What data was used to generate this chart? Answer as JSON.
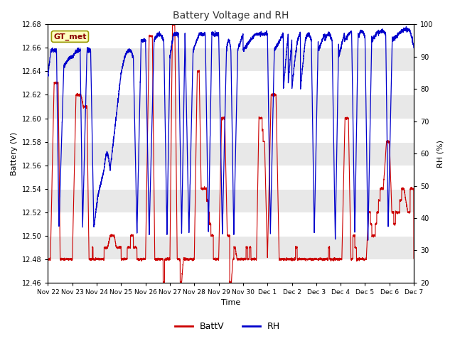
{
  "title": "Battery Voltage and RH",
  "xlabel": "Time",
  "ylabel_left": "Battery (V)",
  "ylabel_right": "RH (%)",
  "annotation": "GT_met",
  "ylim_left": [
    12.46,
    12.68
  ],
  "ylim_right": [
    20,
    100
  ],
  "yticks_left": [
    12.46,
    12.48,
    12.5,
    12.52,
    12.54,
    12.56,
    12.58,
    12.6,
    12.62,
    12.64,
    12.66,
    12.68
  ],
  "yticks_right": [
    20,
    30,
    40,
    50,
    60,
    70,
    80,
    90,
    100
  ],
  "x_tick_labels": [
    "Nov 22",
    "Nov 23",
    "Nov 24",
    "Nov 25",
    "Nov 26",
    "Nov 27",
    "Nov 28",
    "Nov 29",
    "Nov 30",
    "Dec 1",
    "Dec 2",
    "Dec 3",
    "Dec 4",
    "Dec 5",
    "Dec 6",
    "Dec 7"
  ],
  "fig_bg_color": "#ffffff",
  "plot_bg_color": "#e8e8e8",
  "band_color_dark": "#d0d0d0",
  "band_color_light": "#e8e8e8",
  "grid_color": "#ffffff",
  "batt_color": "#cc0000",
  "rh_color": "#0000cc",
  "legend_batt": "BattV",
  "legend_rh": "RH",
  "n_days": 15,
  "pts_per_day": 288
}
